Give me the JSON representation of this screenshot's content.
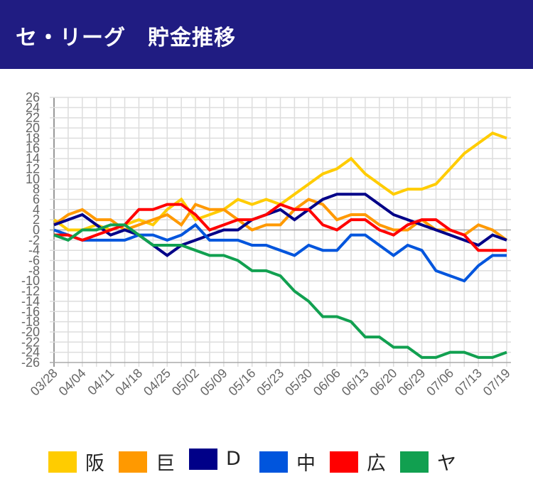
{
  "header": {
    "title": "セ・リーグ　貯金推移"
  },
  "chart_data": {
    "type": "line",
    "title": "",
    "xlabel": "",
    "ylabel": "",
    "ylim": [
      -26,
      26
    ],
    "y_ticks": [
      26,
      24,
      22,
      20,
      18,
      16,
      14,
      12,
      10,
      8,
      6,
      4,
      2,
      0,
      -2,
      -4,
      -6,
      -8,
      -10,
      -12,
      -14,
      -16,
      -18,
      -20,
      -22,
      -24,
      -26
    ],
    "x_tick_labels": [
      "03/28",
      "04/04",
      "04/11",
      "04/18",
      "04/25",
      "05/02",
      "05/09",
      "05/16",
      "05/23",
      "05/30",
      "06/06",
      "06/13",
      "06/20",
      "06/29",
      "07/06",
      "07/13",
      "07/19"
    ],
    "grid": true,
    "legend": "bottom",
    "series": [
      {
        "name": "阪",
        "color": "#ffcc00",
        "values": [
          2,
          0,
          0,
          1,
          0,
          1,
          2,
          1,
          4,
          6,
          2,
          3,
          4,
          6,
          5,
          6,
          5,
          7,
          9,
          11,
          12,
          14,
          11,
          9,
          7,
          8,
          8,
          9,
          12,
          15,
          17,
          19,
          18
        ]
      },
      {
        "name": "巨",
        "color": "#ff9900",
        "values": [
          1,
          3,
          4,
          2,
          2,
          0,
          1,
          2,
          3,
          1,
          5,
          4,
          4,
          2,
          0,
          1,
          1,
          4,
          6,
          5,
          2,
          3,
          3,
          1,
          0,
          0,
          2,
          0,
          0,
          -1,
          1,
          0,
          -2
        ]
      },
      {
        "name": "D",
        "color": "#000088",
        "values": [
          1,
          2,
          3,
          1,
          -1,
          0,
          -1,
          -3,
          -5,
          -3,
          -2,
          -1,
          0,
          0,
          2,
          3,
          4,
          2,
          4,
          6,
          7,
          7,
          7,
          5,
          3,
          2,
          1,
          0,
          -1,
          -2,
          -3,
          -1,
          -2
        ]
      },
      {
        "name": "中",
        "color": "#0055dd",
        "values": [
          0,
          -1,
          -2,
          -2,
          -2,
          -2,
          -1,
          -1,
          -2,
          -1,
          1,
          -2,
          -2,
          -2,
          -3,
          -3,
          -4,
          -5,
          -3,
          -4,
          -4,
          -1,
          -1,
          -3,
          -5,
          -3,
          -4,
          -8,
          -9,
          -10,
          -7,
          -5,
          -5
        ]
      },
      {
        "name": "広",
        "color": "#ff0000",
        "values": [
          -1,
          -1,
          -2,
          -1,
          0,
          1,
          4,
          4,
          5,
          5,
          3,
          0,
          1,
          2,
          2,
          3,
          5,
          4,
          4,
          1,
          0,
          2,
          2,
          0,
          -1,
          1,
          2,
          2,
          0,
          -1,
          -4,
          -4,
          -4
        ]
      },
      {
        "name": "ヤ",
        "color": "#11a050",
        "values": [
          -1,
          -2,
          0,
          0,
          1,
          1,
          -1,
          -3,
          -3,
          -3,
          -4,
          -5,
          -5,
          -6,
          -8,
          -8,
          -9,
          -12,
          -14,
          -17,
          -17,
          -18,
          -21,
          -21,
          -23,
          -23,
          -25,
          -25,
          -24,
          -24,
          -25,
          -25,
          -24
        ]
      }
    ]
  }
}
